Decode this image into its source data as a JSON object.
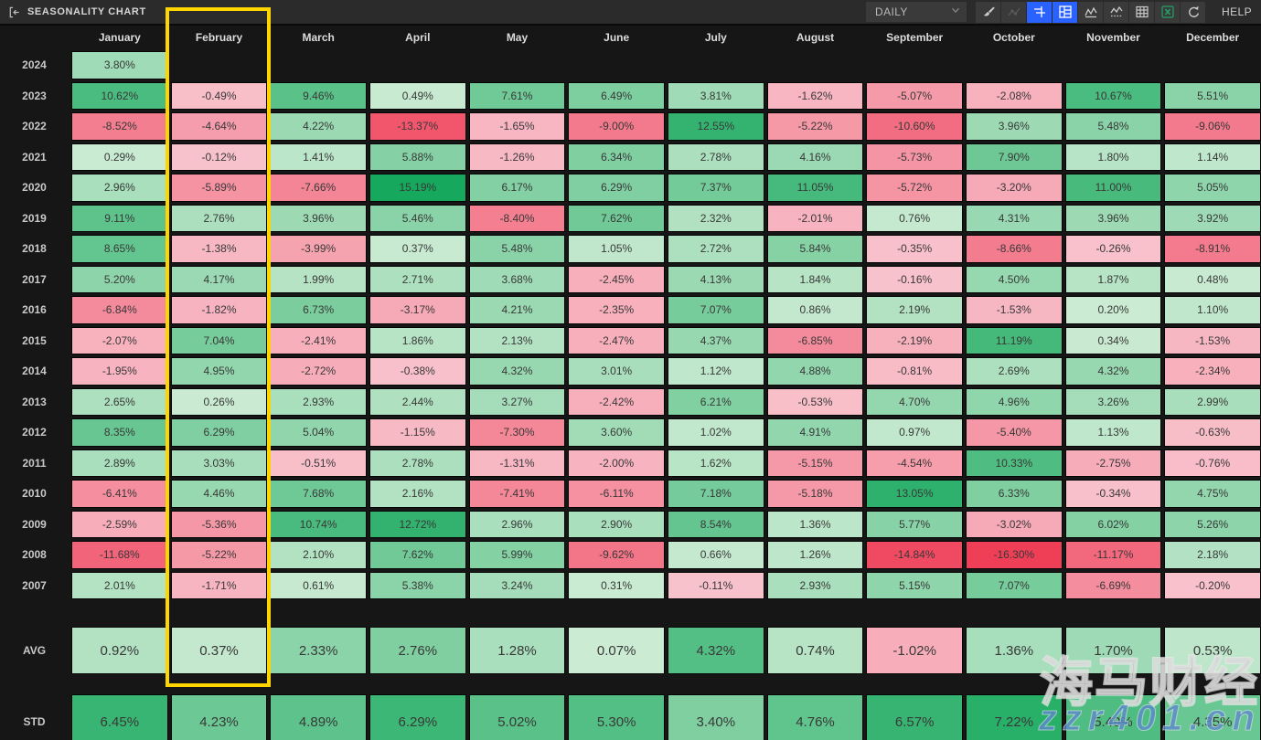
{
  "titlebar": {
    "title": "SEASONALITY CHART",
    "collapse_icon": "panel-collapse-left",
    "timeframe": {
      "value": "DAILY"
    },
    "icons": [
      "brush",
      "trend-line",
      "axis-scale",
      "heatmap-layout",
      "line-chart",
      "baseline-chart",
      "data-table",
      "excel-export",
      "reset"
    ],
    "active_icons": [
      "axis-scale",
      "heatmap-layout"
    ],
    "disabled_icons": [
      "trend-line"
    ],
    "help_label": "HELP"
  },
  "heatmap": {
    "months": [
      "January",
      "February",
      "March",
      "April",
      "May",
      "June",
      "July",
      "August",
      "September",
      "October",
      "November",
      "December"
    ],
    "highlighted_month": "February",
    "rows": [
      {
        "year": "2024",
        "values": [
          3.8,
          null,
          null,
          null,
          null,
          null,
          null,
          null,
          null,
          null,
          null,
          null
        ]
      },
      {
        "year": "2023",
        "values": [
          10.62,
          -0.49,
          9.46,
          0.49,
          7.61,
          6.49,
          3.81,
          -1.62,
          -5.07,
          -2.08,
          10.67,
          5.51
        ]
      },
      {
        "year": "2022",
        "values": [
          -8.52,
          -4.64,
          4.22,
          -13.37,
          -1.65,
          -9.0,
          12.55,
          -5.22,
          -10.6,
          3.96,
          5.48,
          -9.06
        ]
      },
      {
        "year": "2021",
        "values": [
          0.29,
          -0.12,
          1.41,
          5.88,
          -1.26,
          6.34,
          2.78,
          4.16,
          -5.73,
          7.9,
          1.8,
          1.14
        ]
      },
      {
        "year": "2020",
        "values": [
          2.96,
          -5.89,
          -7.66,
          15.19,
          6.17,
          6.29,
          7.37,
          11.05,
          -5.72,
          -3.2,
          11.0,
          5.05
        ]
      },
      {
        "year": "2019",
        "values": [
          9.11,
          2.76,
          3.96,
          5.46,
          -8.4,
          7.62,
          2.32,
          -2.01,
          0.76,
          4.31,
          3.96,
          3.92
        ]
      },
      {
        "year": "2018",
        "values": [
          8.65,
          -1.38,
          -3.99,
          0.37,
          5.48,
          1.05,
          2.72,
          5.84,
          -0.35,
          -8.66,
          -0.26,
          -8.91
        ]
      },
      {
        "year": "2017",
        "values": [
          5.2,
          4.17,
          1.99,
          2.71,
          3.68,
          -2.45,
          4.13,
          1.84,
          -0.16,
          4.5,
          1.87,
          0.48
        ]
      },
      {
        "year": "2016",
        "values": [
          -6.84,
          -1.82,
          6.73,
          -3.17,
          4.21,
          -2.35,
          7.07,
          0.86,
          2.19,
          -1.53,
          0.2,
          1.1
        ]
      },
      {
        "year": "2015",
        "values": [
          -2.07,
          7.04,
          -2.41,
          1.86,
          2.13,
          -2.47,
          4.37,
          -6.85,
          -2.19,
          11.19,
          0.34,
          -1.53
        ]
      },
      {
        "year": "2014",
        "values": [
          -1.95,
          4.95,
          -2.72,
          -0.38,
          4.32,
          3.01,
          1.12,
          4.88,
          -0.81,
          2.69,
          4.32,
          -2.34
        ]
      },
      {
        "year": "2013",
        "values": [
          2.65,
          0.26,
          2.93,
          2.44,
          3.27,
          -2.42,
          6.21,
          -0.53,
          4.7,
          4.96,
          3.26,
          2.99
        ]
      },
      {
        "year": "2012",
        "values": [
          8.35,
          6.29,
          5.04,
          -1.15,
          -7.3,
          3.6,
          1.02,
          4.91,
          0.97,
          -5.4,
          1.13,
          -0.63
        ]
      },
      {
        "year": "2011",
        "values": [
          2.89,
          3.03,
          -0.51,
          2.78,
          -1.31,
          -2.0,
          1.62,
          -5.15,
          -4.54,
          10.33,
          -2.75,
          -0.76
        ]
      },
      {
        "year": "2010",
        "values": [
          -6.41,
          4.46,
          7.68,
          2.16,
          -7.41,
          -6.11,
          7.18,
          -5.18,
          13.05,
          6.33,
          -0.34,
          4.75
        ]
      },
      {
        "year": "2009",
        "values": [
          -2.59,
          -5.36,
          10.74,
          12.72,
          2.96,
          2.9,
          8.54,
          1.36,
          5.77,
          -3.02,
          6.02,
          5.26
        ]
      },
      {
        "year": "2008",
        "values": [
          -11.68,
          -5.22,
          2.1,
          7.62,
          5.99,
          -9.62,
          0.66,
          1.26,
          -14.84,
          -16.3,
          -11.17,
          2.18
        ]
      },
      {
        "year": "2007",
        "values": [
          2.01,
          -1.71,
          0.61,
          5.38,
          3.24,
          0.31,
          -0.11,
          2.93,
          5.15,
          7.07,
          -6.69,
          -0.2
        ]
      }
    ],
    "summary": [
      {
        "label": "AVG",
        "values": [
          0.92,
          0.37,
          2.33,
          2.76,
          1.28,
          0.07,
          4.32,
          0.74,
          -1.02,
          1.36,
          1.7,
          0.53
        ]
      },
      {
        "label": "STD",
        "values": [
          6.45,
          4.23,
          4.89,
          6.29,
          5.02,
          5.3,
          3.4,
          4.76,
          6.57,
          7.22,
          5.49,
          4.35
        ]
      }
    ]
  },
  "colors": {
    "positive_deep": "#16a85c",
    "positive_light": "#cdecd4",
    "negative_deep": "#ef3d56",
    "negative_light": "#f8c3cd",
    "highlight": "#ffd500",
    "active_button": "#2962ff"
  },
  "scales": {
    "years": {
      "pos": 15.0,
      "neg": 16.5
    },
    "avg": {
      "pos": 6.5,
      "neg": 6.5
    },
    "std": {
      "pos": 8.0,
      "neg": 8.0
    }
  },
  "watermark": {
    "line1": "海马财经",
    "line2": "zzr401.cn"
  }
}
